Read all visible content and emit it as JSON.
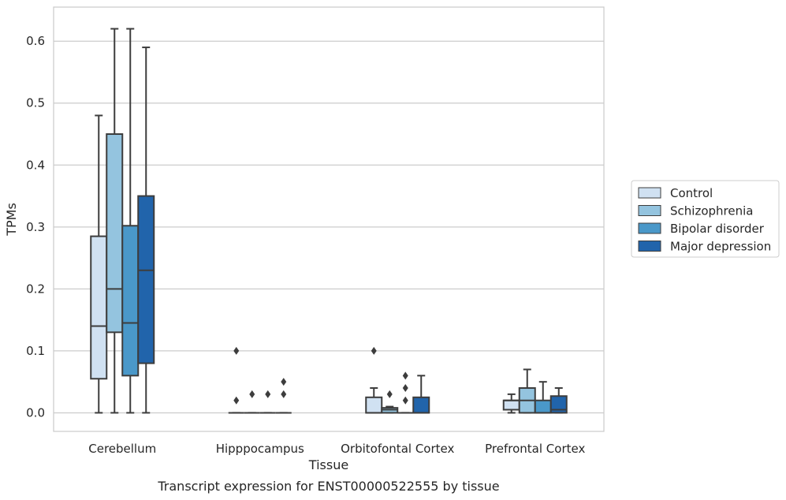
{
  "caption": "Transcript expression for ENST00000522555 by tissue",
  "chart_data": {
    "type": "boxplot",
    "xlabel": "Tissue",
    "ylabel": "TPMs",
    "ylim": [
      -0.03,
      0.655
    ],
    "yticks": [
      0.0,
      0.1,
      0.2,
      0.3,
      0.4,
      0.5,
      0.6
    ],
    "ytick_labels": [
      "0.0",
      "0.1",
      "0.2",
      "0.3",
      "0.4",
      "0.5",
      "0.6"
    ],
    "grid": "horizontal",
    "legend_position": "right",
    "categories": [
      "Cerebellum",
      "Hipppocampus",
      "Orbitofontal Cortex",
      "Prefrontal Cortex"
    ],
    "series": [
      {
        "name": "Control",
        "color": "#d0e1f2",
        "boxes": [
          {
            "whislo": 0.0,
            "q1": 0.055,
            "med": 0.14,
            "q3": 0.285,
            "whishi": 0.48,
            "fliers": []
          },
          {
            "whislo": 0.0,
            "q1": 0.0,
            "med": 0.0,
            "q3": 0.0,
            "whishi": 0.0,
            "fliers": [
              0.02,
              0.1
            ]
          },
          {
            "whislo": 0.0,
            "q1": 0.0,
            "med": 0.0,
            "q3": 0.025,
            "whishi": 0.04,
            "fliers": [
              0.1
            ]
          },
          {
            "whislo": 0.0,
            "q1": 0.005,
            "med": 0.02,
            "q3": 0.02,
            "whishi": 0.03,
            "fliers": []
          }
        ]
      },
      {
        "name": "Schizophrenia",
        "color": "#94c4df",
        "boxes": [
          {
            "whislo": 0.0,
            "q1": 0.13,
            "med": 0.2,
            "q3": 0.45,
            "whishi": 0.62,
            "fliers": []
          },
          {
            "whislo": 0.0,
            "q1": 0.0,
            "med": 0.0,
            "q3": 0.0,
            "whishi": 0.0,
            "fliers": [
              0.03
            ]
          },
          {
            "whislo": 0.0,
            "q1": 0.0,
            "med": 0.005,
            "q3": 0.008,
            "whishi": 0.01,
            "fliers": [
              0.03
            ]
          },
          {
            "whislo": 0.0,
            "q1": 0.0,
            "med": 0.02,
            "q3": 0.04,
            "whishi": 0.07,
            "fliers": []
          }
        ]
      },
      {
        "name": "Bipolar disorder",
        "color": "#4a98c9",
        "boxes": [
          {
            "whislo": 0.0,
            "q1": 0.06,
            "med": 0.145,
            "q3": 0.302,
            "whishi": 0.62,
            "fliers": []
          },
          {
            "whislo": 0.0,
            "q1": 0.0,
            "med": 0.0,
            "q3": 0.0,
            "whishi": 0.0,
            "fliers": [
              0.03
            ]
          },
          {
            "whislo": 0.0,
            "q1": 0.0,
            "med": 0.0,
            "q3": 0.0,
            "whishi": 0.0,
            "fliers": [
              0.02,
              0.04,
              0.06
            ]
          },
          {
            "whislo": 0.0,
            "q1": 0.0,
            "med": 0.0,
            "q3": 0.02,
            "whishi": 0.05,
            "fliers": []
          }
        ]
      },
      {
        "name": "Major depression",
        "color": "#2164ab",
        "boxes": [
          {
            "whislo": 0.0,
            "q1": 0.08,
            "med": 0.23,
            "q3": 0.35,
            "whishi": 0.59,
            "fliers": []
          },
          {
            "whislo": 0.0,
            "q1": 0.0,
            "med": 0.0,
            "q3": 0.0,
            "whishi": 0.0,
            "fliers": [
              0.03,
              0.05
            ]
          },
          {
            "whislo": 0.0,
            "q1": 0.0,
            "med": 0.0,
            "q3": 0.025,
            "whishi": 0.06,
            "fliers": []
          },
          {
            "whislo": 0.0,
            "q1": 0.0,
            "med": 0.005,
            "q3": 0.027,
            "whishi": 0.04,
            "fliers": []
          }
        ]
      }
    ]
  }
}
